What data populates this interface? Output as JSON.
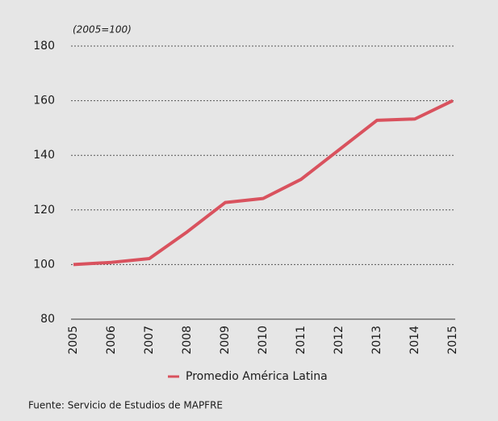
{
  "chart_data": {
    "type": "line",
    "annotation": "(2005=100)",
    "categories": [
      "2005",
      "2006",
      "2007",
      "2008",
      "2009",
      "2010",
      "2011",
      "2012",
      "2013",
      "2014",
      "2015"
    ],
    "series": [
      {
        "name": "Promedio América Latina",
        "color": "#d9525e",
        "values": [
          100,
          100.8,
          102.2,
          112,
          122.7,
          124.2,
          131.2,
          142,
          152.8,
          153.3,
          160
        ]
      }
    ],
    "ylim": [
      80,
      180
    ],
    "yticks": [
      80,
      100,
      120,
      140,
      160,
      180
    ],
    "grid": true,
    "source": "Fuente: Servicio de Estudios de MAPFRE"
  }
}
